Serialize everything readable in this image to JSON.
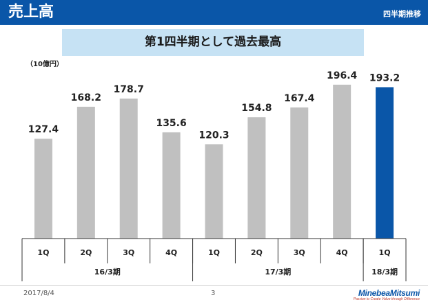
{
  "header": {
    "title": "売上高",
    "badge": "四半期推移"
  },
  "banner": {
    "text": "第1四半期として過去最高"
  },
  "unit_label": "（10億円）",
  "footer": {
    "date": "2017/8/4",
    "page": "3"
  },
  "logo": {
    "name": "MinebeaMitsumi",
    "tagline": "Passion to Create Value through Difference"
  },
  "colors": {
    "header_bg": "#0a56a8",
    "banner_bg": "#c6e2f4",
    "bar_default": "#c0c0c0",
    "bar_highlight": "#0a56a8"
  },
  "chart_data": {
    "type": "bar",
    "ylim": [
      0,
      220
    ],
    "categories": [
      "1Q",
      "2Q",
      "3Q",
      "4Q",
      "1Q",
      "2Q",
      "3Q",
      "4Q",
      "1Q"
    ],
    "values": [
      127.4,
      168.2,
      178.7,
      135.6,
      120.3,
      154.8,
      167.4,
      196.4,
      193.2
    ],
    "value_labels": [
      "127.4",
      "168.2",
      "178.7",
      "135.6",
      "120.3",
      "154.8",
      "167.4",
      "196.4",
      "193.2"
    ],
    "highlight_index": 8,
    "groups": [
      {
        "label": "16/3期",
        "start": 0,
        "count": 4
      },
      {
        "label": "17/3期",
        "start": 4,
        "count": 4
      },
      {
        "label": "18/3期",
        "start": 8,
        "count": 1
      }
    ]
  }
}
